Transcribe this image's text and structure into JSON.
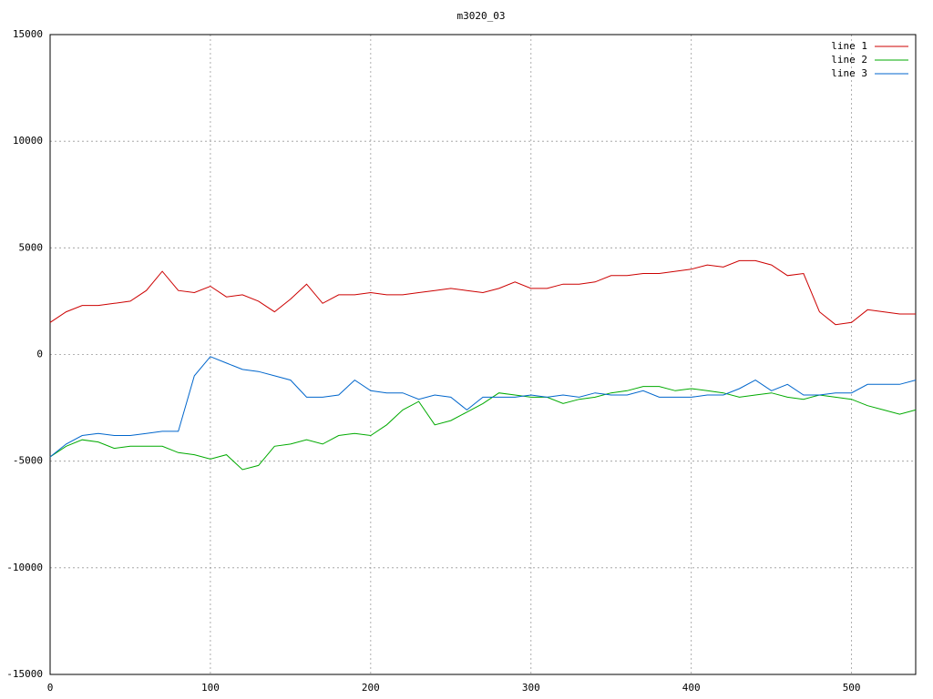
{
  "chart_data": {
    "type": "line",
    "title": "m3020_03",
    "x": [
      0,
      10,
      20,
      30,
      40,
      50,
      60,
      70,
      80,
      90,
      100,
      110,
      120,
      130,
      140,
      150,
      160,
      170,
      180,
      190,
      200,
      210,
      220,
      230,
      240,
      250,
      260,
      270,
      280,
      290,
      300,
      310,
      320,
      330,
      340,
      350,
      360,
      370,
      380,
      390,
      400,
      410,
      420,
      430,
      440,
      450,
      460,
      470,
      480,
      490,
      500,
      510,
      520,
      530,
      540
    ],
    "series": [
      {
        "name": "line 1",
        "color": "#cc0000",
        "values": [
          1500,
          2000,
          2300,
          2300,
          2400,
          2500,
          3000,
          3900,
          3000,
          2900,
          3200,
          2700,
          2800,
          2500,
          2000,
          2600,
          3300,
          2400,
          2800,
          2800,
          2900,
          2800,
          2800,
          2900,
          3000,
          3100,
          3000,
          2900,
          3100,
          3400,
          3100,
          3100,
          3300,
          3300,
          3400,
          3700,
          3700,
          3800,
          3800,
          3900,
          4000,
          4200,
          4100,
          4400,
          4400,
          4200,
          3700,
          3800,
          2000,
          1400,
          1500,
          2100,
          2000,
          1900,
          1900
        ]
      },
      {
        "name": "line 2",
        "color": "#00aa00",
        "values": [
          -4800,
          -4300,
          -4000,
          -4100,
          -4400,
          -4300,
          -4300,
          -4300,
          -4600,
          -4700,
          -4900,
          -4700,
          -5400,
          -5200,
          -4300,
          -4200,
          -4000,
          -4200,
          -3800,
          -3700,
          -3800,
          -3300,
          -2600,
          -2200,
          -3300,
          -3100,
          -2700,
          -2300,
          -1800,
          -1900,
          -2000,
          -2000,
          -2300,
          -2100,
          -2000,
          -1800,
          -1700,
          -1500,
          -1500,
          -1700,
          -1600,
          -1700,
          -1800,
          -2000,
          -1900,
          -1800,
          -2000,
          -2100,
          -1900,
          -2000,
          -2100,
          -2400,
          -2600,
          -2800,
          -2600
        ]
      },
      {
        "name": "line 3",
        "color": "#0066cc",
        "values": [
          -4800,
          -4200,
          -3800,
          -3700,
          -3800,
          -3800,
          -3700,
          -3600,
          -3600,
          -1000,
          -100,
          -400,
          -700,
          -800,
          -1000,
          -1200,
          -2000,
          -2000,
          -1900,
          -1200,
          -1700,
          -1800,
          -1800,
          -2100,
          -1900,
          -2000,
          -2600,
          -2000,
          -2000,
          -2000,
          -1900,
          -2000,
          -1900,
          -2000,
          -1800,
          -1900,
          -1900,
          -1700,
          -2000,
          -2000,
          -2000,
          -1900,
          -1900,
          -1600,
          -1200,
          -1700,
          -1400,
          -1900,
          -1900,
          -1800,
          -1800,
          -1400,
          -1400,
          -1400,
          -1200
        ]
      }
    ],
    "xlim": [
      0,
      540
    ],
    "xticks": [
      0,
      100,
      200,
      300,
      400,
      500
    ],
    "ylim": [
      -15000,
      15000
    ],
    "yticks": [
      -15000,
      -10000,
      -5000,
      0,
      5000,
      10000,
      15000
    ],
    "grid": true,
    "legend": "top-right"
  }
}
